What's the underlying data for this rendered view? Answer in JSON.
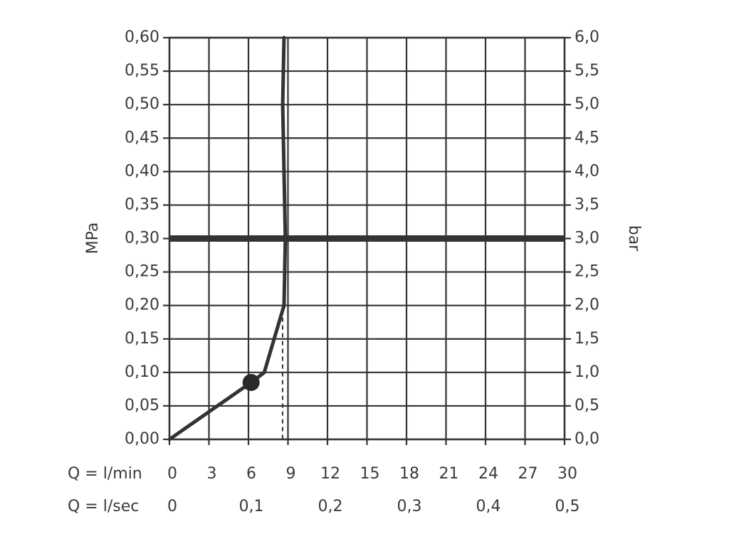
{
  "chart_data": {
    "type": "line",
    "title": "",
    "ylabel_left": "MPa",
    "ylabel_right": "bar",
    "x_axes": [
      {
        "label": "Q = l/min",
        "ticks": [
          "0",
          "3",
          "6",
          "9",
          "12",
          "15",
          "18",
          "21",
          "24",
          "27",
          "30"
        ],
        "tick_values": [
          0,
          3,
          6,
          9,
          12,
          15,
          18,
          21,
          24,
          27,
          30
        ]
      },
      {
        "label": "Q = l/sec",
        "ticks": [
          "0",
          "0,1",
          "0,2",
          "0,3",
          "0,4",
          "0,5"
        ],
        "tick_values": [
          0,
          6,
          12,
          18,
          24,
          30
        ]
      }
    ],
    "xlim": [
      0,
      30
    ],
    "ylim": [
      0,
      0.6
    ],
    "y_left_ticks": [
      "0,00",
      "0,05",
      "0,10",
      "0,15",
      "0,20",
      "0,25",
      "0,30",
      "0,35",
      "0,40",
      "0,45",
      "0,50",
      "0,55",
      "0,60"
    ],
    "y_left_values": [
      0,
      0.05,
      0.1,
      0.15,
      0.2,
      0.25,
      0.3,
      0.35,
      0.4,
      0.45,
      0.5,
      0.55,
      0.6
    ],
    "y_right_ticks": [
      "0,0",
      "0,5",
      "1,0",
      "1,5",
      "2,0",
      "2,5",
      "3,0",
      "3,5",
      "4,0",
      "4,5",
      "5,0",
      "5,5",
      "6,0"
    ],
    "grid": true,
    "series": [
      {
        "x": [
          0,
          6.2,
          7.2,
          8.7,
          8.8,
          8.6,
          8.7
        ],
        "y": [
          0,
          0.085,
          0.1,
          0.2,
          0.3,
          0.5,
          0.6
        ]
      }
    ],
    "reference_line": {
      "y": 0.3
    },
    "marker": {
      "x": 6.2,
      "y": 0.085
    },
    "dashed_drop": {
      "x": 8.7,
      "y_top": 0.2
    }
  }
}
